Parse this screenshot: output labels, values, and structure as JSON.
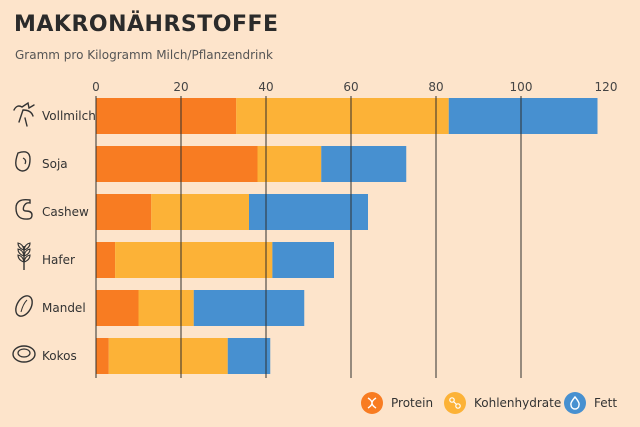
{
  "header": {
    "title": "MAKRONÄHRSTOFFE",
    "subtitle": "Gramm pro Kilogramm Milch/Pflanzendrink"
  },
  "colors": {
    "background": "#fde4cb",
    "protein": "#f87c22",
    "kohlenhydrate": "#fcb237",
    "fett": "#4790d0",
    "grid": "#2f2f2f"
  },
  "chart_data": {
    "type": "bar",
    "orientation": "horizontal",
    "stacked": true,
    "title": "MAKRONÄHRSTOFFE",
    "subtitle": "Gramm pro Kilogramm Milch/Pflanzendrink",
    "xlim": [
      0,
      120
    ],
    "xticks": [
      0,
      20,
      40,
      60,
      80,
      100,
      120
    ],
    "grid": true,
    "legend_position": "bottom-right",
    "categories": [
      "Vollmilch",
      "Soja",
      "Cashew",
      "Hafer",
      "Mandel",
      "Kokos"
    ],
    "category_icons": [
      "cow-icon",
      "soy-bean-icon",
      "cashew-icon",
      "oat-icon",
      "almond-icon",
      "coconut-icon"
    ],
    "series": [
      {
        "name": "Protein",
        "icon": "dna-icon",
        "color": "#f87c22",
        "values": [
          33,
          38,
          13,
          4.5,
          10,
          3
        ]
      },
      {
        "name": "Kohlenhydrate",
        "icon": "molecule-icon",
        "color": "#fcb237",
        "values": [
          50,
          15,
          23,
          37,
          13,
          28
        ]
      },
      {
        "name": "Fett",
        "icon": "drop-icon",
        "color": "#4790d0",
        "values": [
          35,
          20,
          28,
          14.5,
          26,
          10
        ]
      }
    ]
  }
}
